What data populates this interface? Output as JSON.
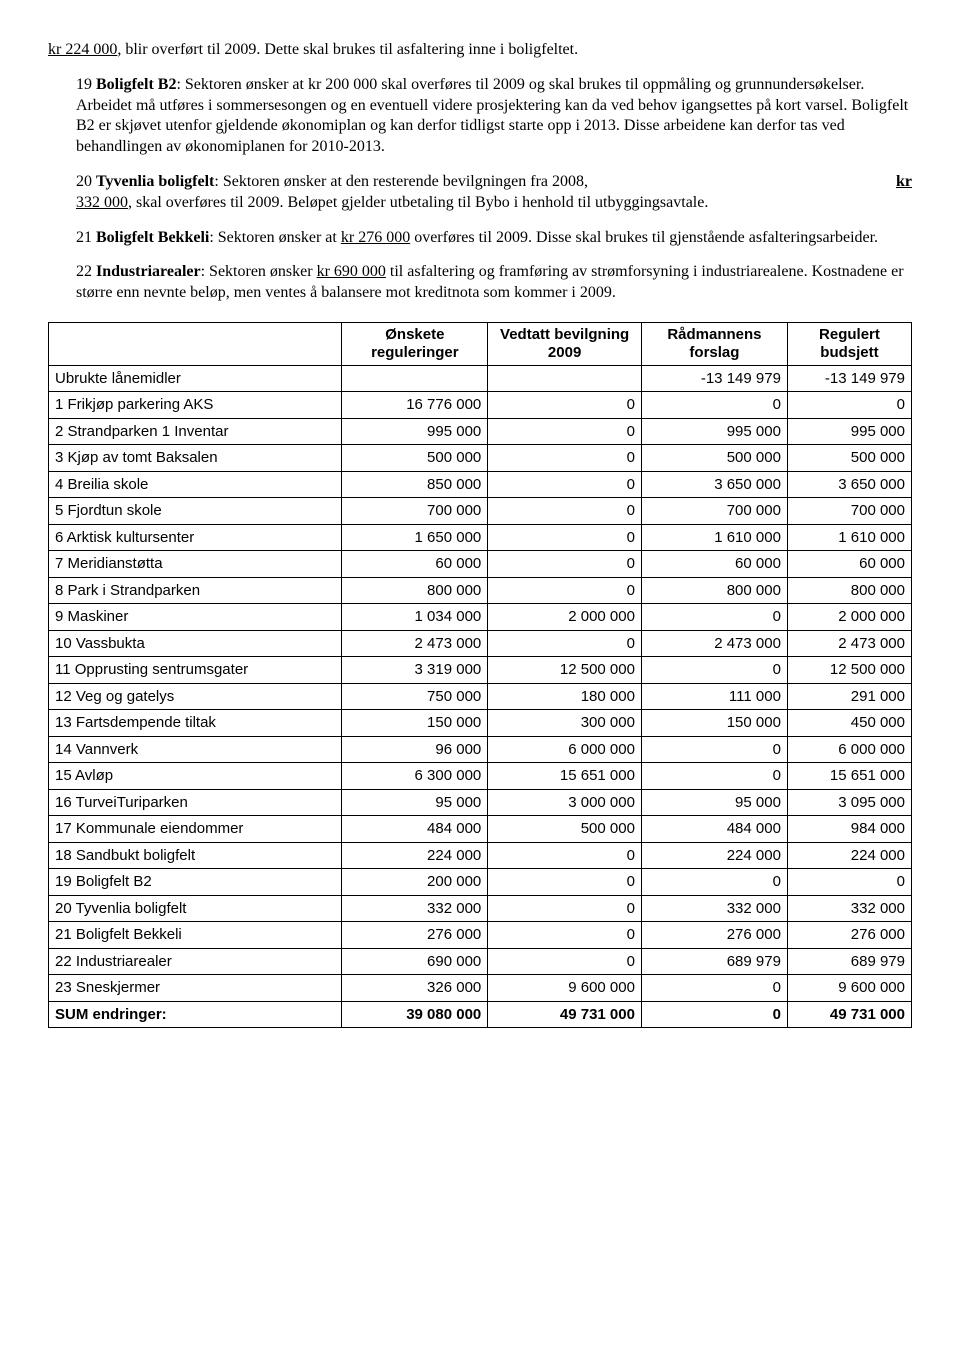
{
  "intro": {
    "prefix": "kr 224 000",
    "rest": ", blir overført til 2009. Dette skal brukes til asfaltering inne i boligfeltet."
  },
  "p19": {
    "num": "19",
    "title": "Boligfelt B2",
    "body1": ": Sektoren ønsker at kr 200 000 skal overføres til 2009 og skal brukes til oppmåling og grunnundersøkelser. Arbeidet må utføres i sommersesongen og en eventuell videre prosjektering kan da ved behov igangsettes på kort varsel. Boligfelt B2 er skjøvet utenfor gjeldende økonomiplan og kan derfor tidligst starte opp i 2013. Disse arbeidene kan derfor tas ved behandlingen av økonomiplanen for 2010-2013."
  },
  "p20": {
    "num": "20",
    "title": "Tyvenlia boligfelt",
    "body1a": ": Sektoren ønsker at den resterende bevilgningen fra 2008, ",
    "amount": "332 000",
    "body1b": ", skal overføres til 2009. Beløpet gjelder utbetaling til Bybo i henhold til utbyggingsavtale.",
    "kr_label": "kr"
  },
  "p21": {
    "num": "21",
    "title": "Boligfelt Bekkeli",
    "body1a": ": Sektoren ønsker at ",
    "amount": "kr 276 000",
    "body1b": " overføres til 2009. Disse skal brukes til gjenstående asfalteringsarbeider."
  },
  "p22": {
    "num": "22",
    "title": "Industriarealer",
    "body1a": ": Sektoren ønsker ",
    "amount": "kr 690 000",
    "body1b": " til asfaltering og framføring av strømforsyning i industriarealene. Kostnadene er større enn nevnte beløp, men ventes å balansere mot kreditnota som kommer i 2009."
  },
  "table": {
    "headers": {
      "blank": "",
      "col1": "Ønskete reguleringer",
      "col2": "Vedtatt bevilgning 2009",
      "col3": "Rådmannens forslag",
      "col4": "Regulert budsjett"
    },
    "rows": [
      {
        "label": "Ubrukte lånemidler",
        "c1": "",
        "c2": "",
        "c3": "-13 149 979",
        "c4": "-13 149 979"
      },
      {
        "label": "1 Frikjøp parkering AKS",
        "c1": "16 776 000",
        "c2": "0",
        "c3": "0",
        "c4": "0"
      },
      {
        "label": "2 Strandparken 1 Inventar",
        "c1": "995 000",
        "c2": "0",
        "c3": "995 000",
        "c4": "995 000"
      },
      {
        "label": "3 Kjøp av tomt Baksalen",
        "c1": "500 000",
        "c2": "0",
        "c3": "500 000",
        "c4": "500 000"
      },
      {
        "label": "4 Breilia skole",
        "c1": "850 000",
        "c2": "0",
        "c3": "3 650 000",
        "c4": "3 650 000"
      },
      {
        "label": "5 Fjordtun skole",
        "c1": "700 000",
        "c2": "0",
        "c3": "700 000",
        "c4": "700 000"
      },
      {
        "label": "6 Arktisk kultursenter",
        "c1": "1 650 000",
        "c2": "0",
        "c3": "1 610 000",
        "c4": "1 610 000"
      },
      {
        "label": "7 Meridianstøtta",
        "c1": "60 000",
        "c2": "0",
        "c3": "60 000",
        "c4": "60 000"
      },
      {
        "label": "8 Park i Strandparken",
        "c1": "800 000",
        "c2": "0",
        "c3": "800 000",
        "c4": "800 000"
      },
      {
        "label": "9 Maskiner",
        "c1": "1 034 000",
        "c2": "2 000 000",
        "c3": "0",
        "c4": "2 000 000"
      },
      {
        "label": "10 Vassbukta",
        "c1": "2 473 000",
        "c2": "0",
        "c3": "2 473 000",
        "c4": "2 473 000"
      },
      {
        "label": "11 Opprusting sentrumsgater",
        "c1": "3 319 000",
        "c2": "12 500 000",
        "c3": "0",
        "c4": "12 500 000"
      },
      {
        "label": "12 Veg og gatelys",
        "c1": "750 000",
        "c2": "180 000",
        "c3": "111 000",
        "c4": "291 000"
      },
      {
        "label": "13 Fartsdempende tiltak",
        "c1": "150 000",
        "c2": "300 000",
        "c3": "150 000",
        "c4": "450 000"
      },
      {
        "label": "14 Vannverk",
        "c1": "96 000",
        "c2": "6 000 000",
        "c3": "0",
        "c4": "6 000 000"
      },
      {
        "label": "15 Avløp",
        "c1": "6 300 000",
        "c2": "15 651 000",
        "c3": "0",
        "c4": "15 651 000"
      },
      {
        "label": "16 TurveiTuriparken",
        "c1": "95 000",
        "c2": "3 000 000",
        "c3": "95 000",
        "c4": "3 095 000"
      },
      {
        "label": "17 Kommunale eiendommer",
        "c1": "484 000",
        "c2": "500 000",
        "c3": "484 000",
        "c4": "984 000"
      },
      {
        "label": "18 Sandbukt boligfelt",
        "c1": "224 000",
        "c2": "0",
        "c3": "224 000",
        "c4": "224 000"
      },
      {
        "label": "19 Boligfelt B2",
        "c1": "200 000",
        "c2": "0",
        "c3": "0",
        "c4": "0"
      },
      {
        "label": "20 Tyvenlia boligfelt",
        "c1": "332 000",
        "c2": "0",
        "c3": "332 000",
        "c4": "332 000"
      },
      {
        "label": "21 Boligfelt Bekkeli",
        "c1": "276 000",
        "c2": "0",
        "c3": "276 000",
        "c4": "276 000"
      },
      {
        "label": "22 Industriarealer",
        "c1": "690 000",
        "c2": "0",
        "c3": "689 979",
        "c4": "689 979"
      },
      {
        "label": "23 Sneskjermer",
        "c1": "326 000",
        "c2": "9 600 000",
        "c3": "0",
        "c4": "9 600 000"
      }
    ],
    "sum": {
      "label": "SUM endringer:",
      "c1": "39 080 000",
      "c2": "49 731 000",
      "c3": "0",
      "c4": "49 731 000"
    }
  }
}
